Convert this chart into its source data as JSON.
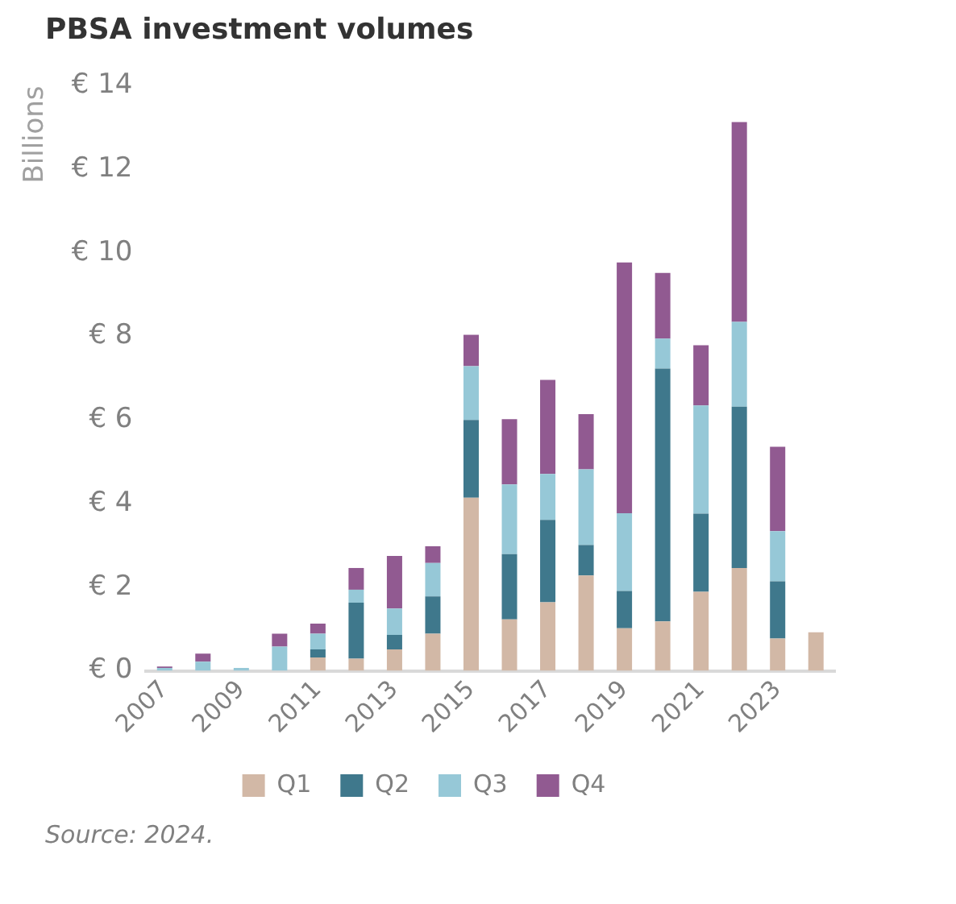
{
  "chart_data": {
    "type": "bar",
    "title": "PBSA investment volumes",
    "ylabel": "Billions",
    "annotations": [
      "Source: 2024."
    ],
    "categories": [
      "2007",
      null,
      "2009",
      null,
      "2011",
      null,
      "2013",
      null,
      "2015",
      null,
      "2017",
      null,
      "2019",
      null,
      "2021",
      null,
      "2023",
      null
    ],
    "stacked": true,
    "legend": "bottom",
    "grid": false,
    "ylim": [
      0,
      14
    ],
    "yticks": [
      {
        "value": 0,
        "label": "€ 0"
      },
      {
        "value": 2,
        "label": "€ 2"
      },
      {
        "value": 4,
        "label": "€ 4"
      },
      {
        "value": 6,
        "label": "€ 6"
      },
      {
        "value": 8,
        "label": "€ 8"
      },
      {
        "value": 10,
        "label": "€ 10"
      },
      {
        "value": 12,
        "label": "€ 12"
      },
      {
        "value": 14,
        "label": "€ 14"
      }
    ],
    "series": [
      {
        "name": "Q1",
        "color": "#d2b8a6",
        "values": [
          0,
          0,
          0,
          0,
          0.32,
          0.29,
          0.51,
          0.89,
          4.14,
          1.23,
          1.64,
          2.28,
          1.02,
          1.18,
          1.89,
          2.46,
          0.77,
          0.92
        ]
      },
      {
        "name": "Q2",
        "color": "#3f788c",
        "values": [
          0,
          0,
          0,
          0,
          0.19,
          1.34,
          0.35,
          0.89,
          1.86,
          1.56,
          1.97,
          0.73,
          0.89,
          6.05,
          1.87,
          3.86,
          1.37,
          0
        ]
      },
      {
        "name": "Q3",
        "color": "#96c8d7",
        "values": [
          0.07,
          0.22,
          0.07,
          0.58,
          0.38,
          0.31,
          0.63,
          0.8,
          1.29,
          1.67,
          1.1,
          1.81,
          1.86,
          0.72,
          2.59,
          2.03,
          1.2,
          0
        ]
      },
      {
        "name": "Q4",
        "color": "#915a91",
        "values": [
          0.03,
          0.19,
          0,
          0.31,
          0.24,
          0.52,
          1.26,
          0.4,
          0.75,
          1.56,
          2.25,
          1.32,
          6.0,
          1.57,
          1.44,
          4.78,
          2.02,
          0
        ]
      }
    ]
  }
}
